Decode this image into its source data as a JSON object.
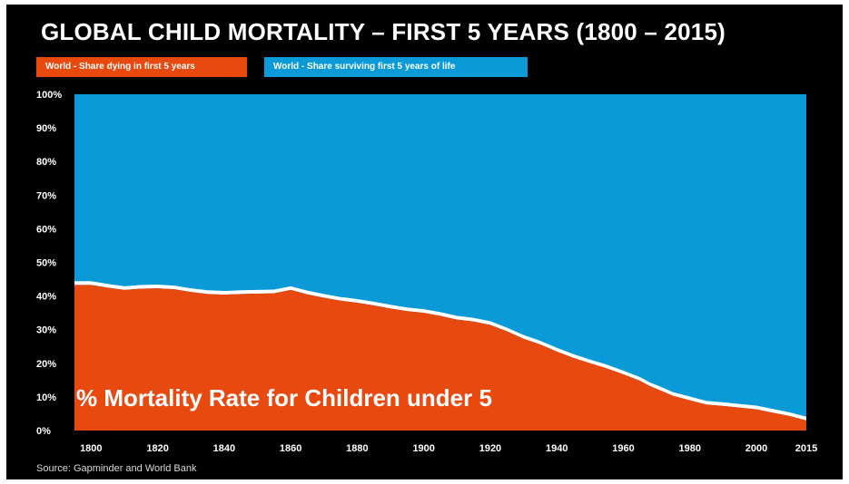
{
  "title": "GLOBAL CHILD MORTALITY – FIRST 5 YEARS (1800 – 2015)",
  "legend": {
    "dying": "World - Share dying in first 5 years",
    "surviving": "World - Share surviving first 5 years of life"
  },
  "colors": {
    "dying": "#e8490f",
    "surviving": "#0a9ad8",
    "gap": "#ffffff",
    "background": "#000000"
  },
  "overlay_text": "% Mortality Rate for Children under 5",
  "source": "Source: Gapminder and World Bank",
  "chart_data": {
    "type": "area",
    "title": "GLOBAL CHILD MORTALITY – FIRST 5 YEARS (1800 – 2015)",
    "xlabel": "",
    "ylabel": "",
    "xlim": [
      1795,
      2015
    ],
    "ylim": [
      0,
      100
    ],
    "x_ticks": [
      "1800",
      "1820",
      "1840",
      "1860",
      "1880",
      "1900",
      "1920",
      "1940",
      "1960",
      "1980",
      "2000",
      "2015"
    ],
    "x_tick_values": [
      1800,
      1820,
      1840,
      1860,
      1880,
      1900,
      1920,
      1940,
      1960,
      1980,
      2000,
      2015
    ],
    "y_ticks": [
      "100%",
      "90%",
      "80%",
      "70%",
      "60%",
      "50%",
      "40%",
      "30%",
      "20%",
      "10%",
      "0%"
    ],
    "y_tick_values": [
      100,
      90,
      80,
      70,
      60,
      50,
      40,
      30,
      20,
      10,
      0
    ],
    "stacked": true,
    "series": [
      {
        "name": "World - Share dying in first 5 years",
        "x": [
          1795,
          1800,
          1805,
          1810,
          1815,
          1820,
          1825,
          1830,
          1835,
          1840,
          1845,
          1850,
          1855,
          1860,
          1865,
          1870,
          1875,
          1880,
          1885,
          1890,
          1895,
          1900,
          1905,
          1910,
          1915,
          1920,
          1925,
          1930,
          1935,
          1940,
          1945,
          1950,
          1955,
          1960,
          1965,
          1968,
          1970,
          1975,
          1980,
          1985,
          1990,
          1995,
          2000,
          2005,
          2010,
          2015
        ],
        "values": [
          43.3,
          43.3,
          42.5,
          41.8,
          42.2,
          42.3,
          42.0,
          41.2,
          40.6,
          40.4,
          40.6,
          40.7,
          40.8,
          41.8,
          40.5,
          39.5,
          38.6,
          38.0,
          37.2,
          36.3,
          35.5,
          35.0,
          34.1,
          33.0,
          32.4,
          31.4,
          29.5,
          27.3,
          25.6,
          23.5,
          21.6,
          20.0,
          18.5,
          16.7,
          14.8,
          13.2,
          12.4,
          10.3,
          9.0,
          7.7,
          7.3,
          6.8,
          6.3,
          5.3,
          4.3,
          3.0
        ]
      },
      {
        "name": "World - Share surviving first 5 years of life",
        "x": [
          1795,
          1800,
          1805,
          1810,
          1815,
          1820,
          1825,
          1830,
          1835,
          1840,
          1845,
          1850,
          1855,
          1860,
          1865,
          1870,
          1875,
          1880,
          1885,
          1890,
          1895,
          1900,
          1905,
          1910,
          1915,
          1920,
          1925,
          1930,
          1935,
          1940,
          1945,
          1950,
          1955,
          1960,
          1965,
          1968,
          1970,
          1975,
          1980,
          1985,
          1990,
          1995,
          2000,
          2005,
          2010,
          2015
        ],
        "values": [
          56.7,
          56.7,
          57.5,
          58.2,
          57.8,
          57.7,
          58.0,
          58.8,
          59.4,
          59.6,
          59.4,
          59.3,
          59.2,
          58.2,
          59.5,
          60.5,
          61.4,
          62.0,
          62.8,
          63.7,
          64.5,
          65.0,
          65.9,
          67.0,
          67.6,
          68.6,
          70.5,
          72.7,
          74.4,
          76.5,
          78.4,
          80.0,
          81.5,
          83.3,
          85.2,
          86.8,
          87.6,
          89.7,
          91.0,
          92.3,
          92.7,
          93.2,
          93.7,
          94.7,
          95.7,
          97.0
        ]
      }
    ]
  }
}
